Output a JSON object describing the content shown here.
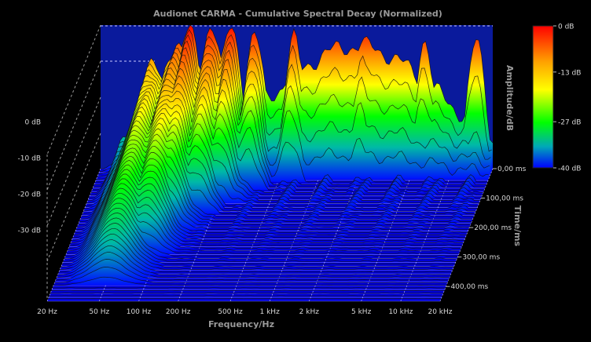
{
  "chart_data": {
    "type": "waterfall-3d",
    "title": "Audionet CARMA - Cumulative Spectral Decay (Normalized)",
    "xlabel": "Frequency/Hz",
    "zlabel": "Amplitude/dB",
    "timelabel": "Time/ms",
    "x_scale": "log",
    "x_ticks": [
      "20 Hz",
      "50 Hz",
      "100 Hz",
      "200 Hz",
      "500 Hz",
      "1 kHz",
      "2 kHz",
      "5 kHz",
      "10 kHz",
      "20 kHz"
    ],
    "x_tick_values": [
      20,
      50,
      100,
      200,
      500,
      1000,
      2000,
      5000,
      10000,
      20000
    ],
    "z_ticks": [
      "0 dB",
      "-10 dB",
      "-20 dB",
      "-30 dB"
    ],
    "z_tick_values": [
      0,
      -10,
      -20,
      -30
    ],
    "zlim": [
      -40,
      0
    ],
    "time_ticks": [
      "0,00 ms",
      "100,00 ms",
      "200,00 ms",
      "300,00 ms",
      "400,00 ms"
    ],
    "time_tick_values": [
      0,
      100,
      200,
      300,
      400
    ],
    "colorbar": {
      "labels": [
        "0 dB",
        "-13 dB",
        "-27 dB",
        "-40 dB"
      ],
      "values": [
        0,
        -13,
        -27,
        -40
      ],
      "colors": [
        "#ff0000",
        "#ffa000",
        "#ffff00",
        "#00ff00",
        "#00b0a0",
        "#0000ff"
      ]
    },
    "decay_peaks": [
      {
        "freq_hz": 50,
        "level_db": -12,
        "decay_ms": 400
      },
      {
        "freq_hz": 75,
        "level_db": -5,
        "decay_ms": 300
      },
      {
        "freq_hz": 95,
        "level_db": -2,
        "decay_ms": 220
      },
      {
        "freq_hz": 140,
        "level_db": 0,
        "decay_ms": 160
      },
      {
        "freq_hz": 200,
        "level_db": -1,
        "decay_ms": 120
      },
      {
        "freq_hz": 300,
        "level_db": -3,
        "decay_ms": 80
      },
      {
        "freq_hz": 600,
        "level_db": -4,
        "decay_ms": 50
      },
      {
        "freq_hz": 2000,
        "level_db": -5,
        "decay_ms": 40
      },
      {
        "freq_hz": 6000,
        "level_db": -4,
        "decay_ms": 30
      },
      {
        "freq_hz": 15000,
        "level_db": -5,
        "decay_ms": 20
      }
    ]
  }
}
